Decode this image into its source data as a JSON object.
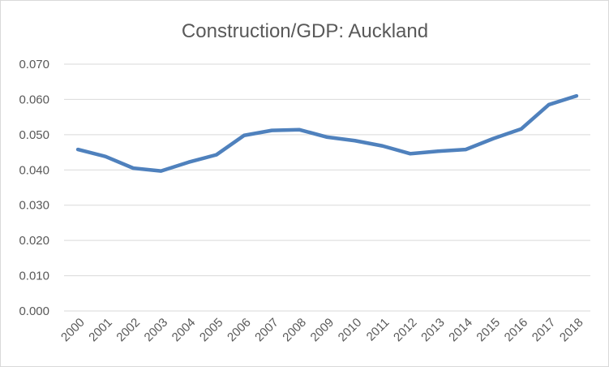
{
  "chart_data": {
    "type": "line",
    "title": "Construction/GDP: Auckland",
    "xlabel": "",
    "ylabel": "",
    "categories": [
      "2000",
      "2001",
      "2002",
      "2003",
      "2004",
      "2005",
      "2006",
      "2007",
      "2008",
      "2009",
      "2010",
      "2011",
      "2012",
      "2013",
      "2014",
      "2015",
      "2016",
      "2017",
      "2018"
    ],
    "series": [
      {
        "values": [
          0.0458,
          0.0438,
          0.0405,
          0.0397,
          0.0422,
          0.0443,
          0.0498,
          0.0512,
          0.0514,
          0.0493,
          0.0483,
          0.0468,
          0.0446,
          0.0453,
          0.0458,
          0.0489,
          0.0516,
          0.0585,
          0.061
        ],
        "color": "#4f81bd"
      }
    ],
    "ylim": [
      0,
      0.07
    ],
    "yticks": [
      "0.000",
      "0.010",
      "0.020",
      "0.030",
      "0.040",
      "0.050",
      "0.060",
      "0.070"
    ],
    "grid": true,
    "legend": "none"
  }
}
